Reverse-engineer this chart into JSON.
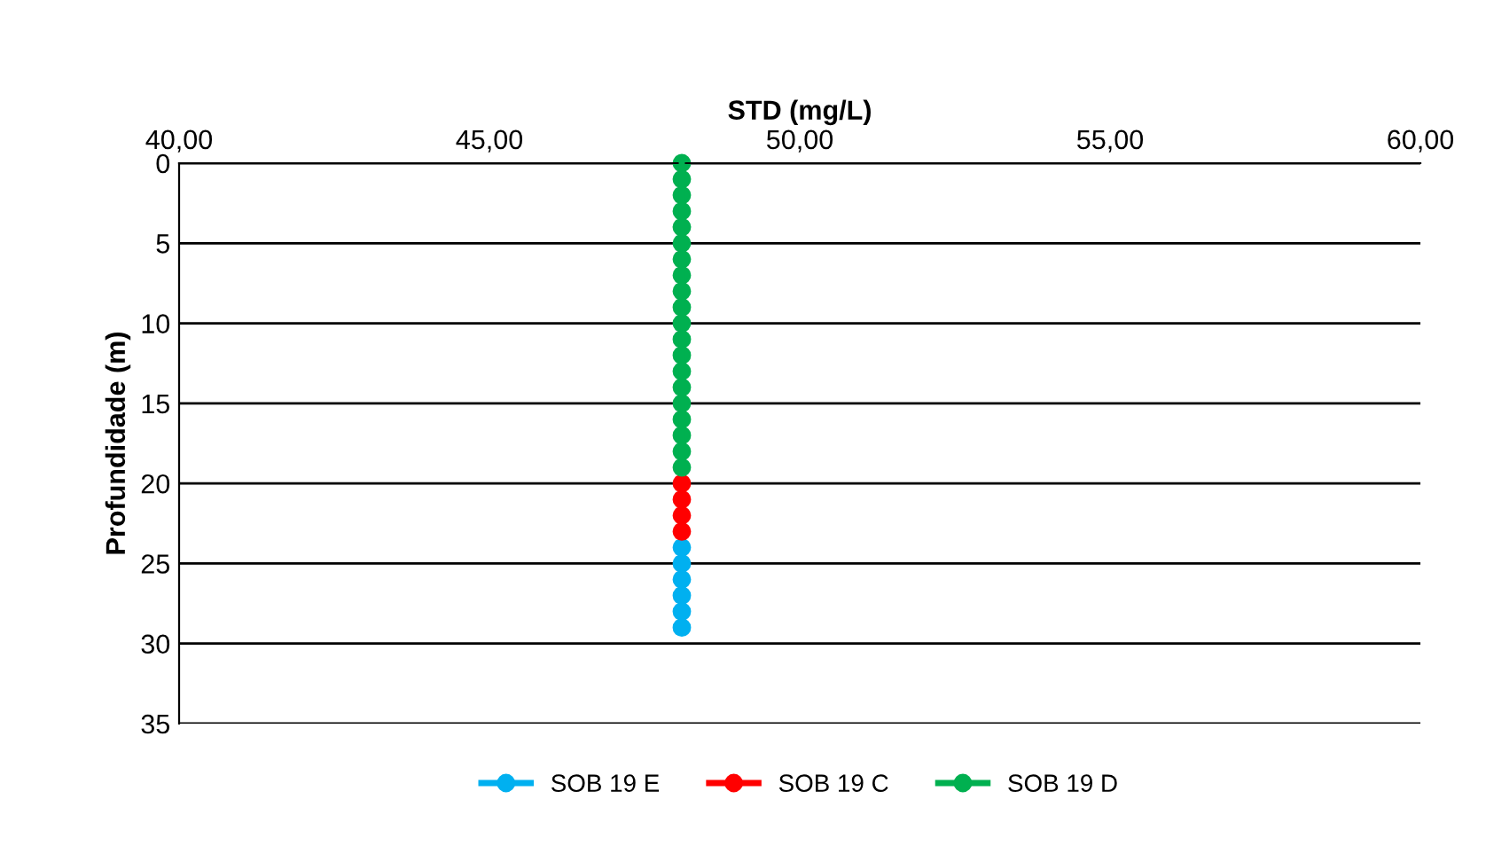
{
  "chart_data": {
    "type": "line",
    "orientation": "horizontal",
    "xlabel": "STD (mg/L)",
    "ylabel": "Profundidade (m)",
    "xlim": [
      40,
      60
    ],
    "xticks": [
      {
        "value": 40,
        "label": "40,00"
      },
      {
        "value": 45,
        "label": "45,00"
      },
      {
        "value": 50,
        "label": "50,00"
      },
      {
        "value": 55,
        "label": "55,00"
      },
      {
        "value": 60,
        "label": "60,00"
      }
    ],
    "ylim": [
      35,
      0
    ],
    "yticks": [
      0,
      5,
      10,
      15,
      20,
      25,
      30,
      35
    ],
    "grid": "y",
    "legend": "bottom",
    "marker": "circle",
    "series": [
      {
        "name": "SOB 19 E",
        "color": "#00b0f0",
        "x": [
          24,
          25,
          26,
          27,
          28,
          29
        ],
        "values": [
          48.1,
          48.1,
          48.1,
          48.1,
          48.1,
          48.1
        ]
      },
      {
        "name": "SOB 19 C",
        "color": "#ff0000",
        "x": [
          20,
          21,
          22,
          23
        ],
        "values": [
          48.1,
          48.1,
          48.1,
          48.1
        ]
      },
      {
        "name": "SOB 19 D",
        "color": "#00b050",
        "x": [
          0,
          1,
          2,
          3,
          4,
          5,
          6,
          7,
          8,
          9,
          10,
          11,
          12,
          13,
          14,
          15,
          16,
          17,
          18,
          19
        ],
        "values": [
          48.1,
          48.1,
          48.1,
          48.1,
          48.1,
          48.1,
          48.1,
          48.1,
          48.1,
          48.1,
          48.1,
          48.1,
          48.1,
          48.1,
          48.1,
          48.1,
          48.1,
          48.1,
          48.1,
          48.1
        ]
      }
    ]
  }
}
